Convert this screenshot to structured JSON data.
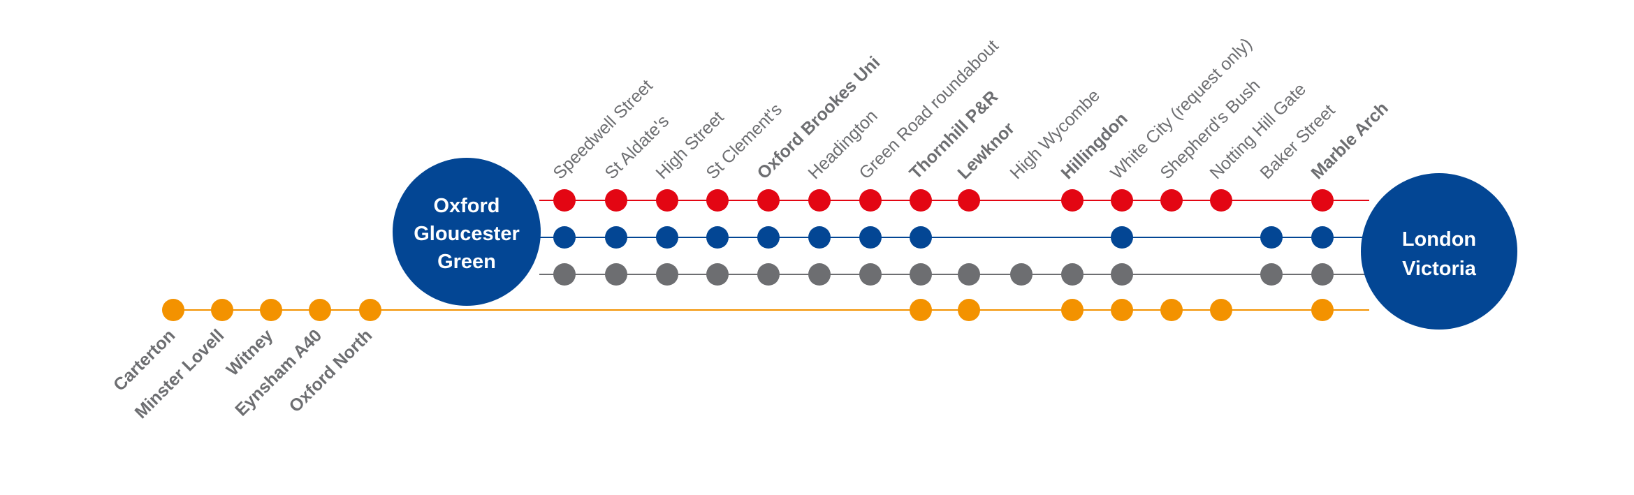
{
  "colors": {
    "red": "#e30613",
    "blue": "#034694",
    "grey": "#6d6e71",
    "orange": "#f39200",
    "terminus": "#034694",
    "label": "#6d6e71",
    "terminus_text": "#ffffff"
  },
  "termini": {
    "oxford": [
      "Oxford",
      "Gloucester",
      "Green"
    ],
    "london": [
      "London",
      "Victoria"
    ]
  },
  "upper_stops": [
    {
      "name": "Speedwell Street",
      "bold": false
    },
    {
      "name": "St Aldate's",
      "bold": false
    },
    {
      "name": "High Street",
      "bold": false
    },
    {
      "name": "St Clement's",
      "bold": false
    },
    {
      "name": "Oxford Brookes Uni",
      "bold": true
    },
    {
      "name": "Headington",
      "bold": false
    },
    {
      "name": "Green Road roundabout",
      "bold": false
    },
    {
      "name": "Thornhill P&R",
      "bold": true
    },
    {
      "name": "Lewknor",
      "bold": true
    },
    {
      "name": "High Wycombe",
      "bold": false
    },
    {
      "name": "Hillingdon",
      "bold": true
    },
    {
      "name": "White City (request only)",
      "bold": false
    },
    {
      "name": "Shepherd's Bush",
      "bold": false
    },
    {
      "name": "Notting Hill Gate",
      "bold": false
    },
    {
      "name": "Baker Street",
      "bold": false
    },
    {
      "name": "Marble Arch",
      "bold": true
    }
  ],
  "lower_stops": [
    {
      "name": "Carterton",
      "bold": true
    },
    {
      "name": "Minster Lovell",
      "bold": true
    },
    {
      "name": "Witney",
      "bold": true
    },
    {
      "name": "Eynsham A40",
      "bold": true
    },
    {
      "name": "Oxford North",
      "bold": true
    }
  ],
  "routes": [
    {
      "color": "red",
      "stops": [
        0,
        1,
        2,
        3,
        4,
        5,
        6,
        7,
        8,
        10,
        11,
        12,
        13,
        15
      ]
    },
    {
      "color": "blue",
      "stops": [
        0,
        1,
        2,
        3,
        4,
        5,
        6,
        7,
        11,
        14,
        15
      ]
    },
    {
      "color": "grey",
      "stops": [
        0,
        1,
        2,
        3,
        4,
        5,
        6,
        7,
        8,
        9,
        10,
        11,
        14,
        15
      ]
    },
    {
      "color": "orange",
      "western_stops": [
        0,
        1,
        2,
        3,
        4
      ],
      "stops": [
        7,
        8,
        10,
        11,
        12,
        13,
        15
      ]
    }
  ]
}
